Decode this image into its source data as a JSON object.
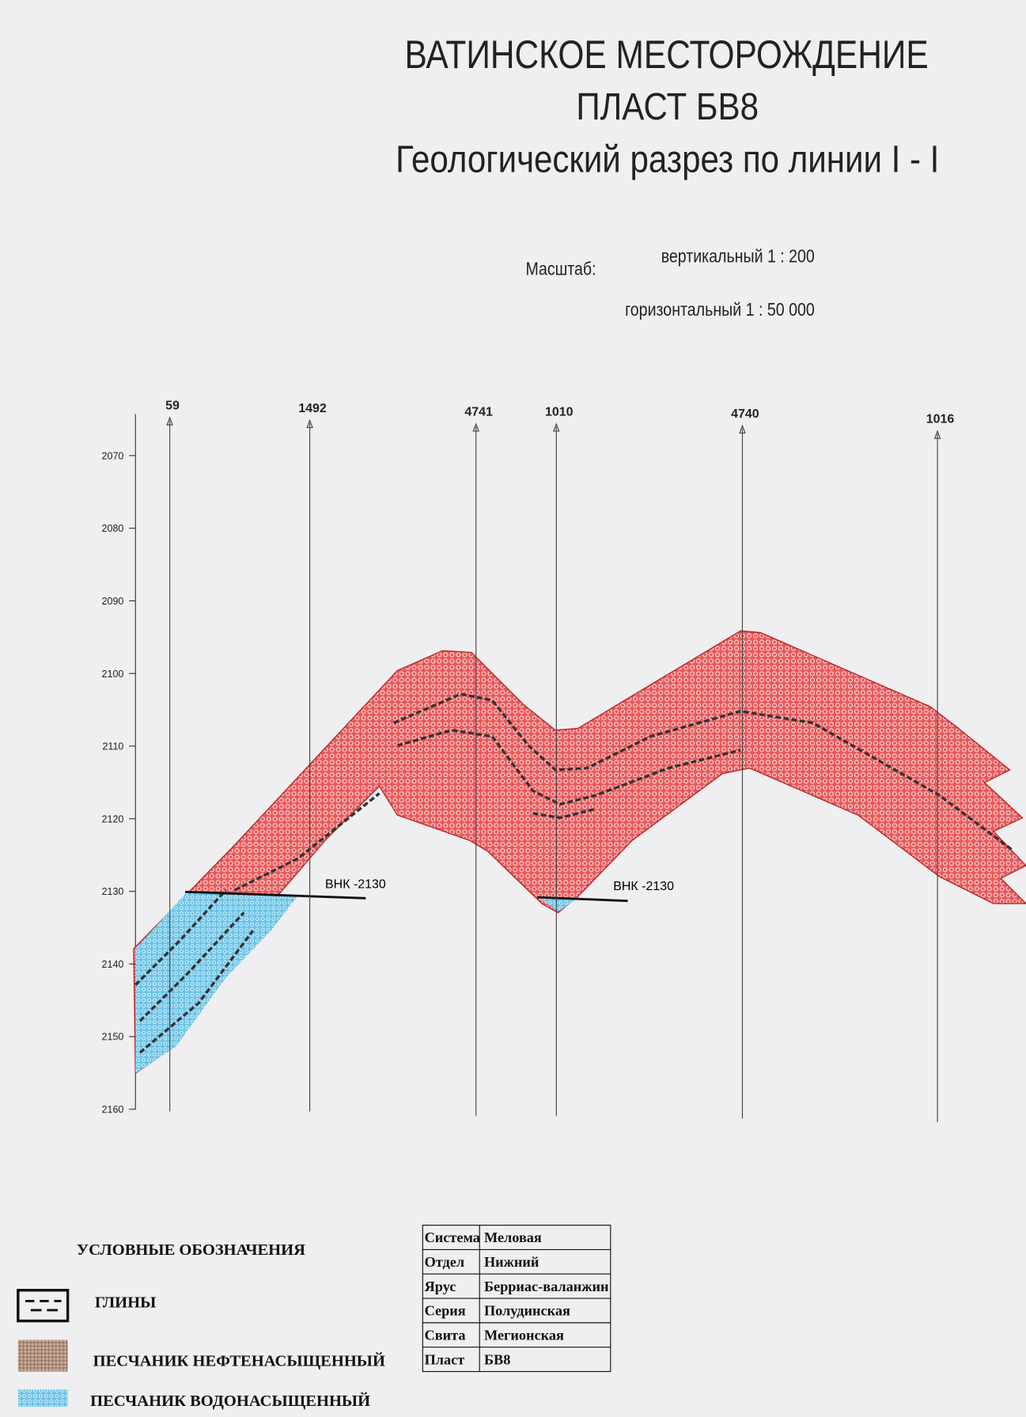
{
  "title": [
    "ВАТИНСКОЕ МЕСТОРОЖДЕНИЕ",
    "ПЛАСТ БВ8",
    "Геологический разрез по линии I - I"
  ],
  "scale": {
    "label": "Масштаб:",
    "vertical": "вертикальный 1 : 200",
    "horizontal": "горизонтальный 1 : 50 000"
  },
  "depth_ticks": [
    2070,
    2080,
    2090,
    2100,
    2110,
    2120,
    2130,
    2140,
    2150,
    2160
  ],
  "wells": [
    "59",
    "1492",
    "4741",
    "1010",
    "4740",
    "1016"
  ],
  "annotations": [
    "ВНК -2130",
    "ВНК -2130"
  ],
  "legend": {
    "title": "УСЛОВНЫЕ ОБОЗНАЧЕНИЯ",
    "items": [
      "ГЛИНЫ",
      "ПЕСЧАНИК НЕФТЕНАСЫЩЕННЫЙ",
      "ПЕСЧАНИК ВОДОНАСЫЩЕННЫЙ"
    ]
  },
  "stratigraphy": {
    "rows": [
      [
        "Система",
        "Меловая"
      ],
      [
        "Отдел",
        "Нижний"
      ],
      [
        "Ярус",
        "Берриас-валанжин"
      ],
      [
        "Серия",
        "Полудинская"
      ],
      [
        "Свита",
        "Мегионская"
      ],
      [
        "Пласт",
        "БВ8"
      ]
    ]
  }
}
